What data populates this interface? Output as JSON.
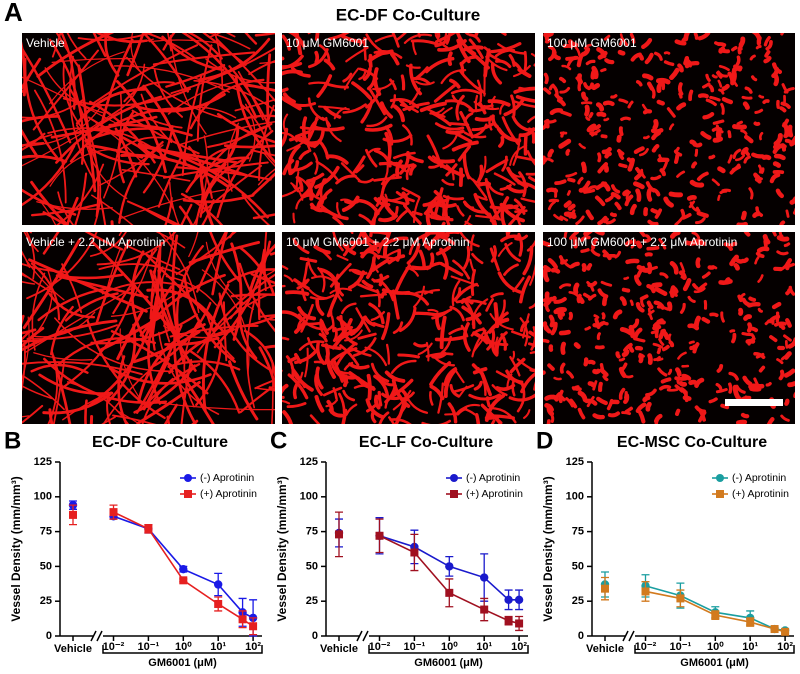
{
  "panel_a": {
    "label": "A",
    "title": "EC-DF Co-Culture",
    "images": [
      "Vehicle",
      "10 μM GM6001",
      "100 μM GM6001",
      "Vehicle + 2.2 μM Aprotinin",
      "10 μM GM6001 + 2.2 μM Aprotinin",
      "100 μM GM6001 + 2.2 μM Aprotinin"
    ]
  },
  "chart_data": [
    {
      "type": "line",
      "panel": "B",
      "title": "EC-DF Co-Culture",
      "ylabel": "Vessel Density (mm/mm³)",
      "xlabel": "GM6001 (μM)",
      "vehicle_label": "Vehicle",
      "x": [
        0.01,
        0.1,
        1,
        10,
        50,
        100
      ],
      "xscale": "log",
      "xlim": [
        0.005,
        180
      ],
      "xticks": [
        {
          "value": 0.01,
          "label": "10⁻²"
        },
        {
          "value": 0.1,
          "label": "10⁻¹"
        },
        {
          "value": 1,
          "label": "10⁰"
        },
        {
          "value": 10,
          "label": "10¹"
        },
        {
          "value": 100,
          "label": "10²"
        }
      ],
      "ylim": [
        0,
        125
      ],
      "yticks": [
        0,
        25,
        50,
        75,
        100,
        125
      ],
      "legend": "upper right",
      "series": [
        {
          "name": "(-) Aprotinin",
          "color": "#1a1ae6",
          "marker": "circle",
          "vehicle": 94,
          "vehicle_error": 3,
          "values": [
            86,
            77,
            48,
            37,
            17,
            13
          ],
          "errors": [
            2,
            3,
            2,
            8,
            10,
            13
          ]
        },
        {
          "name": "(+) Aprotinin",
          "color": "#e62020",
          "marker": "square",
          "vehicle": 87,
          "vehicle_error": 7,
          "values": [
            89,
            77,
            40,
            23,
            12,
            7
          ],
          "errors": [
            5,
            3,
            1,
            5,
            6,
            6
          ]
        }
      ]
    },
    {
      "type": "line",
      "panel": "C",
      "title": "EC-LF Co-Culture",
      "ylabel": "Vessel Density (mm/mm³)",
      "xlabel": "GM6001 (μM)",
      "vehicle_label": "Vehicle",
      "x": [
        0.01,
        0.1,
        1,
        10,
        50,
        100
      ],
      "xscale": "log",
      "xlim": [
        0.005,
        180
      ],
      "xticks": [
        {
          "value": 0.01,
          "label": "10⁻²"
        },
        {
          "value": 0.1,
          "label": "10⁻¹"
        },
        {
          "value": 1,
          "label": "10⁰"
        },
        {
          "value": 10,
          "label": "10¹"
        },
        {
          "value": 100,
          "label": "10²"
        }
      ],
      "ylim": [
        0,
        125
      ],
      "yticks": [
        0,
        25,
        50,
        75,
        100,
        125
      ],
      "legend": "upper right",
      "series": [
        {
          "name": "(-) Aprotinin",
          "color": "#1a1acc",
          "marker": "circle",
          "vehicle": 74,
          "vehicle_error": 10,
          "values": [
            72,
            64,
            50,
            42,
            26,
            26
          ],
          "errors": [
            13,
            12,
            7,
            17,
            7,
            7
          ]
        },
        {
          "name": "(+) Aprotinin",
          "color": "#a01020",
          "marker": "square",
          "vehicle": 73,
          "vehicle_error": 16,
          "values": [
            72,
            60,
            31,
            19,
            11,
            9
          ],
          "errors": [
            12,
            13,
            10,
            8,
            3,
            5
          ]
        }
      ]
    },
    {
      "type": "line",
      "panel": "D",
      "title": "EC-MSC Co-Culture",
      "ylabel": "Vessel Density (mm/mm³)",
      "xlabel": "GM6001 (μM)",
      "vehicle_label": "Vehicle",
      "x": [
        0.01,
        0.1,
        1,
        10,
        50,
        100
      ],
      "xscale": "log",
      "xlim": [
        0.005,
        180
      ],
      "xticks": [
        {
          "value": 0.01,
          "label": "10⁻²"
        },
        {
          "value": 0.1,
          "label": "10⁻¹"
        },
        {
          "value": 1,
          "label": "10⁰"
        },
        {
          "value": 10,
          "label": "10¹"
        },
        {
          "value": 100,
          "label": "10²"
        }
      ],
      "ylim": [
        0,
        125
      ],
      "yticks": [
        0,
        25,
        50,
        75,
        100,
        125
      ],
      "legend": "upper right",
      "series": [
        {
          "name": "(-) Aprotinin",
          "color": "#1a9ea0",
          "marker": "circle",
          "vehicle": 37,
          "vehicle_error": 9,
          "values": [
            36,
            29,
            17,
            13,
            5,
            4
          ],
          "errors": [
            8,
            9,
            4,
            5,
            1,
            1
          ]
        },
        {
          "name": "(+) Aprotinin",
          "color": "#d27a1e",
          "marker": "square",
          "vehicle": 34,
          "vehicle_error": 8,
          "values": [
            32,
            27,
            15,
            10,
            5,
            3
          ],
          "errors": [
            7,
            6,
            3,
            3,
            1,
            1
          ]
        }
      ]
    }
  ]
}
